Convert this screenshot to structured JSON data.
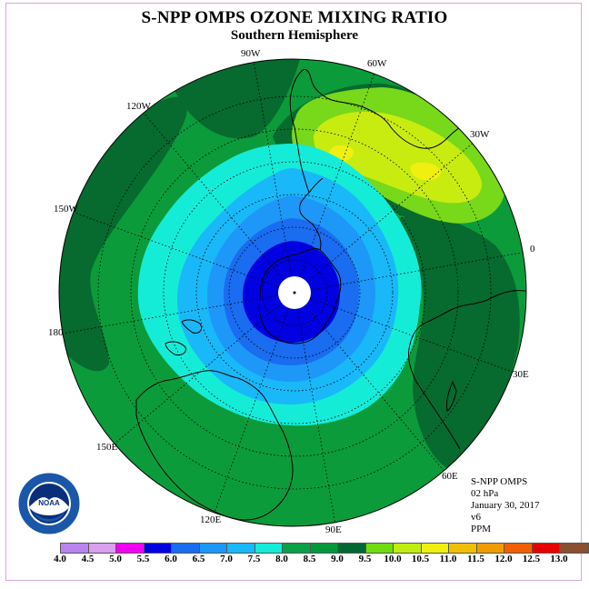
{
  "title": "S-NPP OMPS OZONE MIXING RATIO",
  "subtitle": "Southern Hemisphere",
  "longitude_labels": [
    "90W",
    "60W",
    "30W",
    "0",
    "30E",
    "60E",
    "90E",
    "120E",
    "150E",
    "180",
    "150W",
    "120W"
  ],
  "info": {
    "instrument": "S-NPP OMPS",
    "level": "02 hPa",
    "date": "January 30, 2017",
    "version": "v6",
    "units": "PPM"
  },
  "logo": {
    "text": "NOAA",
    "ring_text": "NATIONAL OCEANIC AND ATMOSPHERIC ADMINISTRATION · U.S. DEPARTMENT OF COMMERCE",
    "colors": {
      "outer": "#1a57a8",
      "inner": "#0a2f7a",
      "bird": "#ffffff"
    }
  },
  "colorbar": {
    "labels": [
      "4.0",
      "4.5",
      "5.0",
      "5.5",
      "6.0",
      "6.5",
      "7.0",
      "7.5",
      "8.0",
      "8.5",
      "9.0",
      "9.5",
      "10.0",
      "10.5",
      "11.0",
      "11.5",
      "12.0",
      "12.5",
      "13.0"
    ],
    "colors": [
      "#b983f0",
      "#d9a0ee",
      "#f000f0",
      "#0000e0",
      "#1a6cf0",
      "#1e98f8",
      "#19b8f8",
      "#14ecd8",
      "#0aa048",
      "#009a3c",
      "#006830",
      "#70dc10",
      "#c0ec10",
      "#f0f010",
      "#f0c000",
      "#f09c00",
      "#f06000",
      "#e80000",
      "#8a5030"
    ]
  },
  "map_colors": {
    "c_85": "#0c9b3a",
    "c_90": "#076a2e",
    "c_80": "#14ecd8",
    "c_75": "#19b8f8",
    "c_70": "#1e98f8",
    "c_65": "#1a6cf0",
    "c_60": "#0000e0",
    "c_95": "#78d81a",
    "c_100": "#c8ec10",
    "c_105": "#f0f010",
    "pole_hole": "#ffffff",
    "coast": "#000000",
    "grid": "#000000"
  }
}
